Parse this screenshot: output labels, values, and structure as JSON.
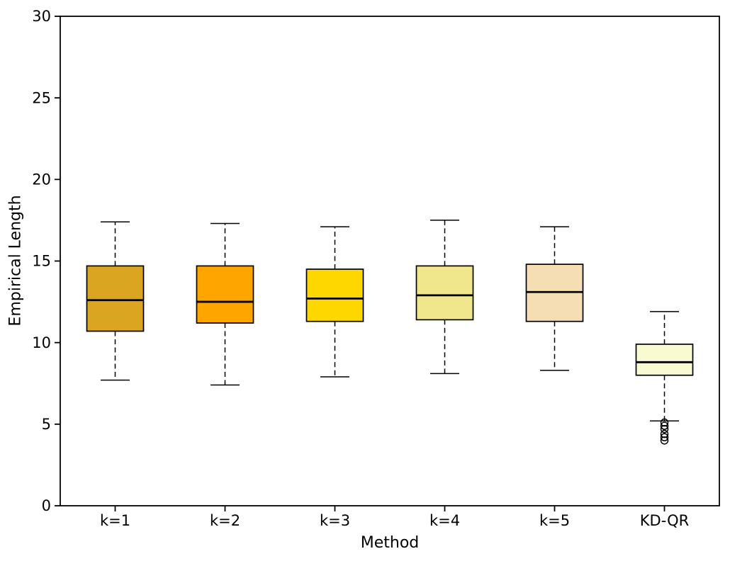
{
  "figure": {
    "background": "#ffffff",
    "frame_color": "#000000"
  },
  "chart_data": {
    "type": "boxplot",
    "title": "",
    "xlabel": "Method",
    "ylabel": "Empirical Length",
    "ylim": [
      0,
      30
    ],
    "yticks": [
      0,
      5,
      10,
      15,
      20,
      25,
      30
    ],
    "grid": false,
    "legend": "none",
    "categories": [
      "k=1",
      "k=2",
      "k=3",
      "k=4",
      "k=5",
      "KD-QR"
    ],
    "series": [
      {
        "category": "k=1",
        "color": "#DAA520",
        "whisker_low": 7.7,
        "q1": 10.7,
        "median": 12.6,
        "q3": 14.7,
        "whisker_high": 17.4,
        "outliers": []
      },
      {
        "category": "k=2",
        "color": "#FFA500",
        "whisker_low": 7.4,
        "q1": 11.2,
        "median": 12.5,
        "q3": 14.7,
        "whisker_high": 17.3,
        "outliers": []
      },
      {
        "category": "k=3",
        "color": "#FFD700",
        "whisker_low": 7.9,
        "q1": 11.3,
        "median": 12.7,
        "q3": 14.5,
        "whisker_high": 17.1,
        "outliers": []
      },
      {
        "category": "k=4",
        "color": "#F0E68C",
        "whisker_low": 8.1,
        "q1": 11.4,
        "median": 12.9,
        "q3": 14.7,
        "whisker_high": 17.5,
        "outliers": []
      },
      {
        "category": "k=5",
        "color": "#F5DEB3",
        "whisker_low": 8.3,
        "q1": 11.3,
        "median": 13.1,
        "q3": 14.8,
        "whisker_high": 17.1,
        "outliers": []
      },
      {
        "category": "KD-QR",
        "color": "#FAFAD2",
        "whisker_low": 5.2,
        "q1": 8.0,
        "median": 8.8,
        "q3": 9.9,
        "whisker_high": 11.9,
        "outliers": [
          5.1,
          4.9,
          4.7,
          4.4,
          4.2,
          4.0
        ]
      }
    ]
  }
}
